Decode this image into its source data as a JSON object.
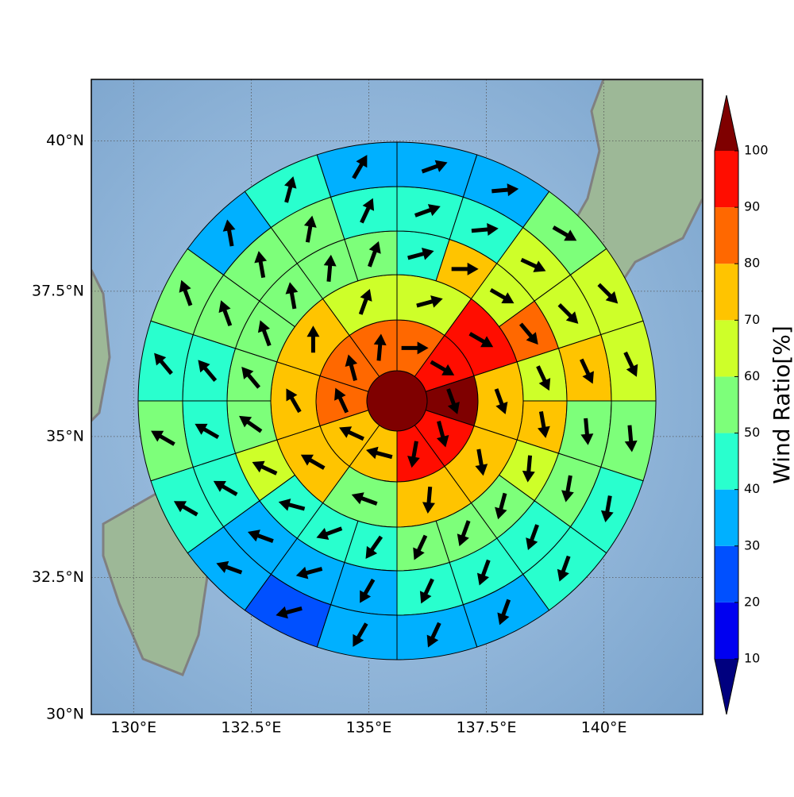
{
  "chart_data": {
    "type": "polar_grid",
    "projection": "mercator",
    "xlim": [
      129.1,
      142.1
    ],
    "ylim": [
      30,
      41
    ],
    "xticks": [
      {
        "value": 130,
        "label": "130°E"
      },
      {
        "value": 132.5,
        "label": "132.5°E"
      },
      {
        "value": 135,
        "label": "135°E"
      },
      {
        "value": 137.5,
        "label": "137.5°E"
      },
      {
        "value": 140,
        "label": "140°E"
      }
    ],
    "yticks": [
      {
        "value": 30,
        "label": "30°N"
      },
      {
        "value": 32.5,
        "label": "32.5°N"
      },
      {
        "value": 35,
        "label": "35°N"
      },
      {
        "value": 37.5,
        "label": "37.5°N"
      },
      {
        "value": 40,
        "label": "40°N"
      }
    ],
    "grid": true,
    "colorbar": {
      "label": "Wind Ratio[%]",
      "levels": [
        10,
        20,
        30,
        40,
        50,
        60,
        70,
        80,
        90,
        100
      ],
      "colors": [
        "#00007f",
        "#0000f0",
        "#0050ff",
        "#00b0ff",
        "#29ffce",
        "#7dff7a",
        "#ceff29",
        "#ffc400",
        "#ff6800",
        "#ff0d00",
        "#7f0000"
      ]
    },
    "rings": [
      {
        "values": [
          105
        ]
      },
      {
        "values": [
          85,
          95,
          105,
          95,
          95,
          75,
          75,
          85,
          85,
          85
        ],
        "directions": [
          90,
          120,
          160,
          165,
          190,
          285,
          295,
          335,
          345,
          5
        ]
      },
      {
        "values": [
          65,
          95,
          75,
          75,
          75,
          55,
          75,
          75,
          75,
          65
        ],
        "directions": [
          75,
          120,
          160,
          170,
          185,
          290,
          300,
          330,
          0,
          20
        ]
      },
      {
        "values": [
          45,
          75,
          65,
          85,
          65,
          75,
          65,
          55,
          55,
          55,
          45,
          45,
          45,
          65,
          55,
          55,
          55,
          55,
          55,
          55
        ],
        "directions": [
          75,
          90,
          120,
          140,
          155,
          170,
          185,
          195,
          200,
          205,
          215,
          250,
          285,
          295,
          305,
          320,
          340,
          350,
          5,
          20
        ]
      },
      {
        "values": [
          45,
          45,
          65,
          65,
          75,
          55,
          55,
          45,
          45,
          45,
          35,
          35,
          35,
          45,
          45,
          45,
          55,
          55,
          55,
          45
        ],
        "directions": [
          70,
          85,
          115,
          135,
          155,
          175,
          190,
          200,
          200,
          205,
          210,
          255,
          290,
          300,
          300,
          320,
          340,
          350,
          10,
          25
        ]
      },
      {
        "values": [
          35,
          35,
          55,
          65,
          65,
          55,
          45,
          45,
          35,
          35,
          35,
          25,
          35,
          45,
          55,
          45,
          55,
          35,
          45,
          35
        ],
        "directions": [
          70,
          85,
          120,
          135,
          155,
          175,
          190,
          200,
          200,
          205,
          210,
          255,
          290,
          300,
          300,
          320,
          340,
          350,
          15,
          30
        ]
      }
    ]
  }
}
